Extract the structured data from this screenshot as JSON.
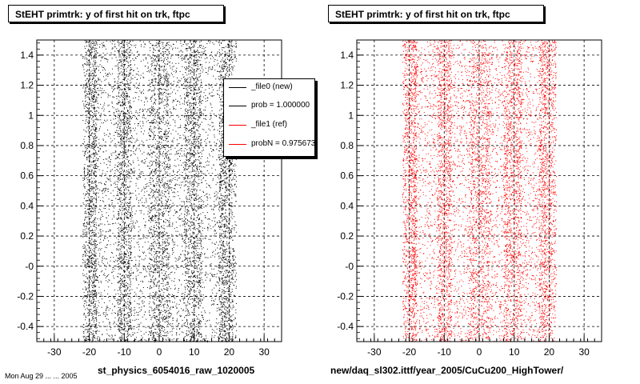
{
  "chart_data": [
    {
      "type": "scatter",
      "title": "StEHT primtrk: y of first hit on trk, ftpc",
      "xlabel": "st_physics_6054016_raw_1020005",
      "ylabel": "",
      "xlim": [
        -35,
        35
      ],
      "ylim": [
        -0.5,
        1.5
      ],
      "xticks": [
        "-30",
        "-20",
        "-10",
        "0",
        "10",
        "20",
        "30"
      ],
      "yticks": [
        "-0.4",
        "-0.2",
        "-0",
        "0.2",
        "0.4",
        "0.6",
        "0.8",
        "1",
        "1.2",
        "1.4"
      ],
      "grid": true,
      "marker_color": "#000000",
      "x_bands": [
        [
          -22,
          -18
        ],
        [
          -12,
          -8
        ],
        [
          -3,
          3
        ],
        [
          7,
          12
        ],
        [
          17,
          22
        ]
      ],
      "x_extent": [
        -22,
        22
      ],
      "legend": {
        "placement": "top-right",
        "entries": [
          {
            "label": "_file0 (new)",
            "color": "#000000"
          },
          {
            "label": "prob = 1.000000",
            "color": "#000000"
          },
          {
            "label": "_file1 (ref)",
            "color": "#ff0000"
          },
          {
            "label": "probN = 0.975673",
            "color": "#ff0000"
          }
        ]
      }
    },
    {
      "type": "scatter",
      "title": "StEHT primtrk: y of first hit on trk, ftpc",
      "xlabel": "new/daq_sl302.ittf/year_2005/CuCu200_HighTower/",
      "ylabel": "",
      "xlim": [
        -35,
        35
      ],
      "ylim": [
        -0.5,
        1.5
      ],
      "xticks": [
        "-30",
        "-20",
        "-10",
        "0",
        "10",
        "20",
        "30"
      ],
      "yticks": [
        "-0.4",
        "-0.2",
        "-0",
        "0.2",
        "0.4",
        "0.6",
        "0.8",
        "1",
        "1.2",
        "1.4"
      ],
      "grid": true,
      "marker_color": "#ff0000",
      "x_bands": [
        [
          -22,
          -18
        ],
        [
          -12,
          -8
        ],
        [
          -3,
          3
        ],
        [
          7,
          12
        ],
        [
          17,
          22
        ]
      ],
      "x_extent": [
        -22,
        22
      ]
    }
  ],
  "footer_note": "Mon Aug 29 ... ... 2005"
}
